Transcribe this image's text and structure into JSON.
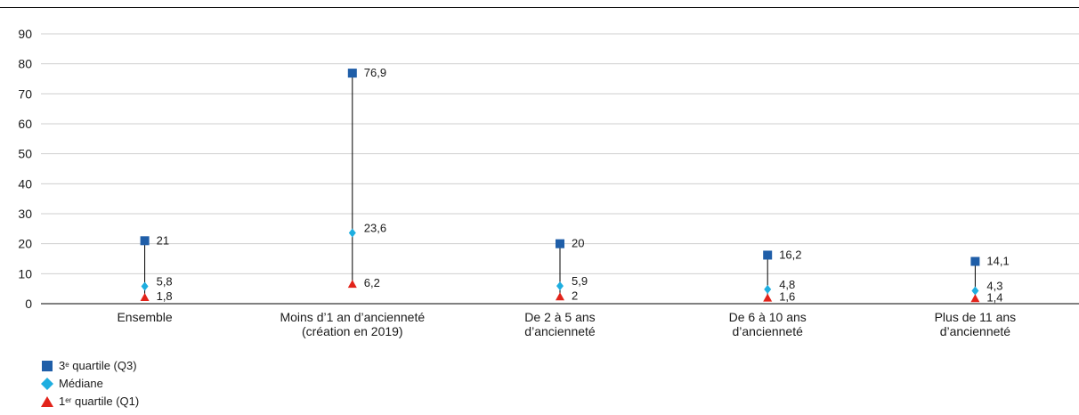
{
  "chart_data": {
    "type": "scatter",
    "categories": [
      [
        "Ensemble"
      ],
      [
        "Moins d’1 an d’ancienneté",
        "(création en 2019)"
      ],
      [
        "De 2 à 5 ans",
        "d’ancienneté"
      ],
      [
        "De 6 à 10 ans",
        "d’ancienneté"
      ],
      [
        "Plus de 11 ans",
        "d’ancienneté"
      ]
    ],
    "series": [
      {
        "name": "3e quartile (Q3)",
        "marker": "square",
        "color": "#1f5ea8",
        "values": [
          21,
          76.9,
          20,
          16.2,
          14.1
        ],
        "labels": [
          "21",
          "76,9",
          "20",
          "16,2",
          "14,1"
        ]
      },
      {
        "name": "Médiane",
        "marker": "diamond",
        "color": "#1eaee0",
        "values": [
          5.8,
          23.6,
          5.9,
          4.8,
          4.3
        ],
        "labels": [
          "5,8",
          "23,6",
          "5,9",
          "4,8",
          "4,3"
        ]
      },
      {
        "name": "1er quartile (Q1)",
        "marker": "triangle",
        "color": "#e2231a",
        "values": [
          1.8,
          6.2,
          2,
          1.6,
          1.4
        ],
        "labels": [
          "1,8",
          "6,2",
          "2",
          "1,6",
          "1,4"
        ]
      }
    ],
    "yticks": [
      0,
      10,
      20,
      30,
      40,
      50,
      60,
      70,
      80,
      90
    ],
    "ylim": [
      0,
      90
    ],
    "grid": true,
    "legend_position": "bottom-left"
  },
  "legend": {
    "q3": {
      "sup": "e",
      "rest": " quartile (Q3)"
    },
    "median": {
      "label": "Médiane"
    },
    "q1": {
      "sup": "er",
      "rest": " quartile (Q1)"
    }
  }
}
